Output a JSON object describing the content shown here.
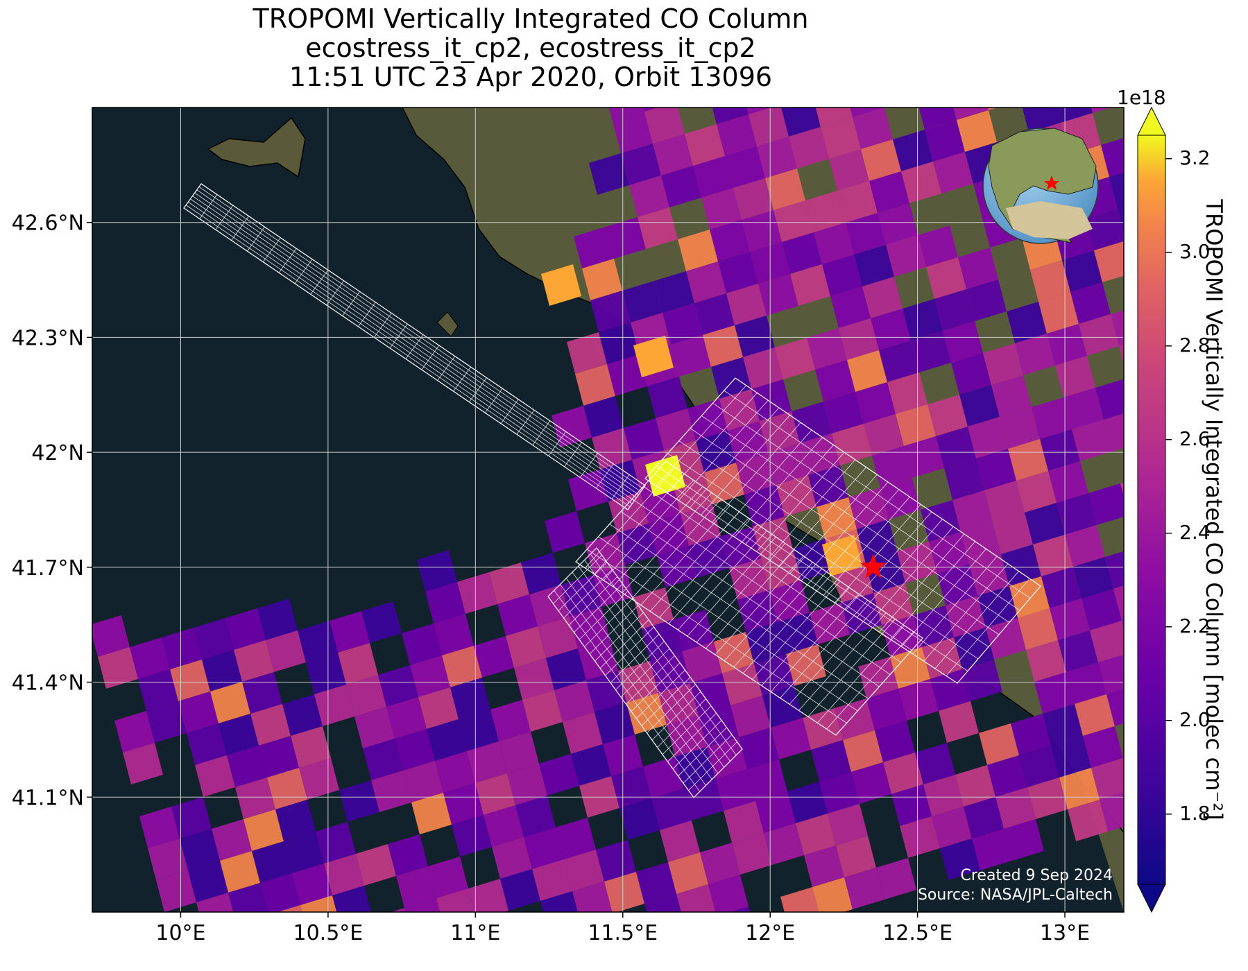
{
  "title": {
    "line1": "TROPOMI Vertically Integrated CO Column",
    "line2": "ecostress_it_cp2, ecostress_it_cp2",
    "line3": "11:51 UTC 23 Apr 2020, Orbit 13096"
  },
  "map": {
    "lon_range": [
      9.7,
      13.2
    ],
    "lat_range": [
      40.8,
      42.9
    ],
    "lon_ticks": [
      {
        "value": 10.0,
        "label": "10°E"
      },
      {
        "value": 10.5,
        "label": "10.5°E"
      },
      {
        "value": 11.0,
        "label": "11°E"
      },
      {
        "value": 11.5,
        "label": "11.5°E"
      },
      {
        "value": 12.0,
        "label": "12°E"
      },
      {
        "value": 12.5,
        "label": "12.5°E"
      },
      {
        "value": 13.0,
        "label": "13°E"
      }
    ],
    "lat_ticks": [
      {
        "value": 42.6,
        "label": "42.6°N"
      },
      {
        "value": 42.3,
        "label": "42.3°N"
      },
      {
        "value": 42.0,
        "label": "42°N"
      },
      {
        "value": 41.7,
        "label": "41.7°N"
      },
      {
        "value": 41.4,
        "label": "41.4°N"
      },
      {
        "value": 41.1,
        "label": "41.1°N"
      }
    ],
    "grid": true,
    "target_marker": {
      "lon": 12.35,
      "lat": 41.7,
      "symbol": "star",
      "color": "#ff0000"
    },
    "inset_globe": {
      "position": "top-right",
      "marker_color": "#ff0000"
    },
    "colors": {
      "sea": "#11222c",
      "land": "#5a5a3a",
      "grid": "#cfcfcf",
      "footprint": "#ffffff"
    }
  },
  "colorbar": {
    "label": "TROPOMI Vertically Integrated CO Column [molec cm⁻²]",
    "exponent": "1e18",
    "min": 1.65,
    "max": 3.25,
    "extend": "both",
    "colormap": "plasma",
    "ticks": [
      {
        "value": 1.8,
        "label": "1.8"
      },
      {
        "value": 2.0,
        "label": "2.0"
      },
      {
        "value": 2.2,
        "label": "2.2"
      },
      {
        "value": 2.4,
        "label": "2.4"
      },
      {
        "value": 2.6,
        "label": "2.6"
      },
      {
        "value": 2.8,
        "label": "2.8"
      },
      {
        "value": 3.0,
        "label": "3.0"
      },
      {
        "value": 3.2,
        "label": "3.2"
      }
    ]
  },
  "credits": {
    "created": "Created 9 Sep 2024",
    "source": "Source: NASA/JPL-Caltech"
  }
}
